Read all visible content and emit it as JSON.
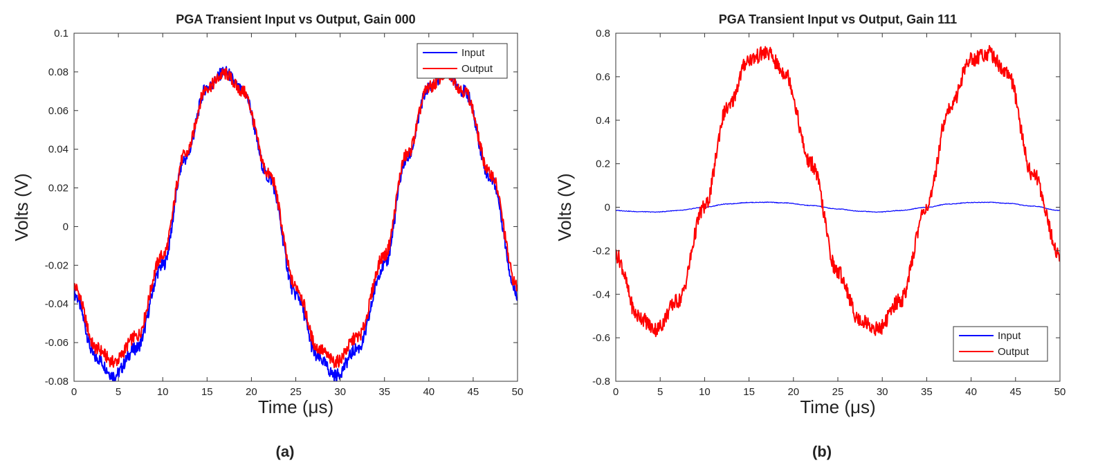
{
  "figure": {
    "captions": [
      "(a)",
      "(b)"
    ]
  },
  "chart_data": [
    {
      "type": "line",
      "title": "PGA Transient Input vs Output, Gain 000",
      "xlabel": "Time (μs)",
      "ylabel": "Volts (V)",
      "xlim": [
        0,
        50
      ],
      "ylim": [
        -0.08,
        0.1
      ],
      "xticks": [
        0,
        5,
        10,
        15,
        20,
        25,
        30,
        35,
        40,
        45,
        50
      ],
      "yticks": [
        -0.08,
        -0.06,
        -0.04,
        -0.02,
        0,
        0.02,
        0.04,
        0.06,
        0.08,
        0.1
      ],
      "xtick_labels": [
        "0",
        "5",
        "10",
        "15",
        "20",
        "25",
        "30",
        "35",
        "40",
        "45",
        "50"
      ],
      "ytick_labels": [
        "-0.08",
        "-0.06",
        "-0.04",
        "-0.02",
        "0",
        "0.02",
        "0.04",
        "0.06",
        "0.08",
        "0.1"
      ],
      "legend_position": "top-right",
      "grid": false,
      "series": [
        {
          "name": "Input",
          "color": "#0000ff",
          "x": [
            0,
            2.5,
            4.5,
            7,
            10,
            12.5,
            15,
            17,
            19,
            22,
            25,
            27.5,
            29.5,
            32,
            35,
            37.5,
            40,
            42,
            44,
            47,
            50
          ],
          "y": [
            -0.035,
            -0.068,
            -0.077,
            -0.063,
            -0.02,
            0.035,
            0.072,
            0.08,
            0.07,
            0.025,
            -0.035,
            -0.068,
            -0.077,
            -0.063,
            -0.02,
            0.035,
            0.072,
            0.08,
            0.07,
            0.025,
            -0.035
          ]
        },
        {
          "name": "Output",
          "color": "#ff0000",
          "x": [
            0,
            2.5,
            4.5,
            7,
            10,
            12.5,
            15,
            17,
            19,
            22,
            25,
            27.5,
            29.5,
            32,
            35,
            37.5,
            40,
            42,
            44,
            47,
            50
          ],
          "y": [
            -0.031,
            -0.063,
            -0.07,
            -0.057,
            -0.015,
            0.037,
            0.072,
            0.079,
            0.07,
            0.027,
            -0.031,
            -0.063,
            -0.07,
            -0.057,
            -0.015,
            0.037,
            0.072,
            0.079,
            0.07,
            0.027,
            -0.031
          ]
        }
      ]
    },
    {
      "type": "line",
      "title": "PGA Transient Input vs Output, Gain 111",
      "xlabel": "Time (μs)",
      "ylabel": "Volts (V)",
      "xlim": [
        0,
        50
      ],
      "ylim": [
        -0.8,
        0.8
      ],
      "xticks": [
        0,
        5,
        10,
        15,
        20,
        25,
        30,
        35,
        40,
        45,
        50
      ],
      "yticks": [
        -0.8,
        -0.6,
        -0.4,
        -0.2,
        0,
        0.2,
        0.4,
        0.6,
        0.8
      ],
      "xtick_labels": [
        "0",
        "5",
        "10",
        "15",
        "20",
        "25",
        "30",
        "35",
        "40",
        "45",
        "50"
      ],
      "ytick_labels": [
        "-0.8",
        "-0.6",
        "-0.4",
        "-0.2",
        "0",
        "0.2",
        "0.4",
        "0.6",
        "0.8"
      ],
      "legend_position": "bottom-right",
      "grid": false,
      "series": [
        {
          "name": "Input",
          "color": "#0000ff",
          "x": [
            0,
            2.5,
            4.5,
            7,
            10,
            12.5,
            15,
            17,
            19,
            22,
            25,
            27.5,
            29.5,
            32,
            35,
            37.5,
            40,
            42,
            44,
            47,
            50
          ],
          "y": [
            -0.015,
            -0.02,
            -0.022,
            -0.015,
            0.0,
            0.015,
            0.022,
            0.023,
            0.02,
            0.008,
            -0.008,
            -0.018,
            -0.022,
            -0.015,
            0.0,
            0.015,
            0.022,
            0.023,
            0.018,
            0.005,
            -0.015
          ]
        },
        {
          "name": "Output",
          "color": "#ff0000",
          "x": [
            0,
            2.5,
            4.5,
            7,
            10,
            12.5,
            15,
            17,
            19,
            22,
            25,
            27.5,
            29.5,
            32,
            35,
            37.5,
            40,
            42,
            44,
            47,
            50
          ],
          "y": [
            -0.22,
            -0.5,
            -0.56,
            -0.43,
            0.0,
            0.45,
            0.68,
            0.71,
            0.62,
            0.2,
            -0.3,
            -0.52,
            -0.56,
            -0.43,
            0.0,
            0.45,
            0.68,
            0.71,
            0.62,
            0.15,
            -0.22
          ]
        }
      ]
    }
  ]
}
